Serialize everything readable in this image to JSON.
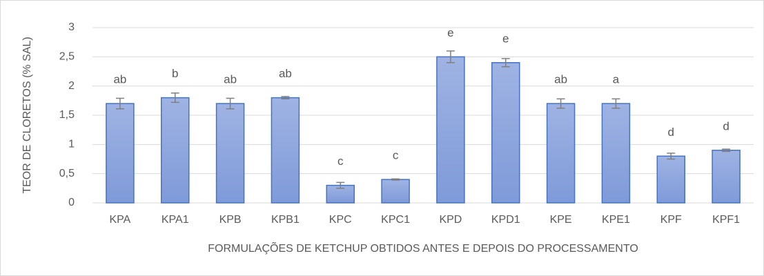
{
  "chart_data": {
    "type": "bar",
    "ylabel": "TEOR DE CLORETOS (% SAL)",
    "xlabel": "FORMULAÇÕES DE KETCHUP OBTIDOS ANTES E DEPOIS DO PROCESSAMENTO",
    "categories": [
      "KPA",
      "KPA1",
      "KPB",
      "KPB1",
      "KPC",
      "KPC1",
      "KPD",
      "KPD1",
      "KPE",
      "KPE1",
      "KPF",
      "KPF1"
    ],
    "values": [
      1.7,
      1.8,
      1.7,
      1.8,
      0.3,
      0.4,
      2.5,
      2.4,
      1.7,
      1.7,
      0.8,
      0.9
    ],
    "errors": [
      0.09,
      0.08,
      0.09,
      0.02,
      0.05,
      0.01,
      0.1,
      0.07,
      0.08,
      0.08,
      0.05,
      0.02
    ],
    "annotations": [
      "ab",
      "b",
      "ab",
      "ab",
      "c",
      "c",
      "e",
      "e",
      "ab",
      "a",
      "d",
      "d"
    ],
    "color": "#4472c4",
    "ylim": [
      0,
      3
    ],
    "yticks": [
      0,
      {
        "value": 0.5,
        "label": "0,5"
      },
      1,
      {
        "value": 1.5,
        "label": "1,5"
      },
      2,
      {
        "value": 2.5,
        "label": "2,5"
      },
      3
    ],
    "grid": true
  }
}
